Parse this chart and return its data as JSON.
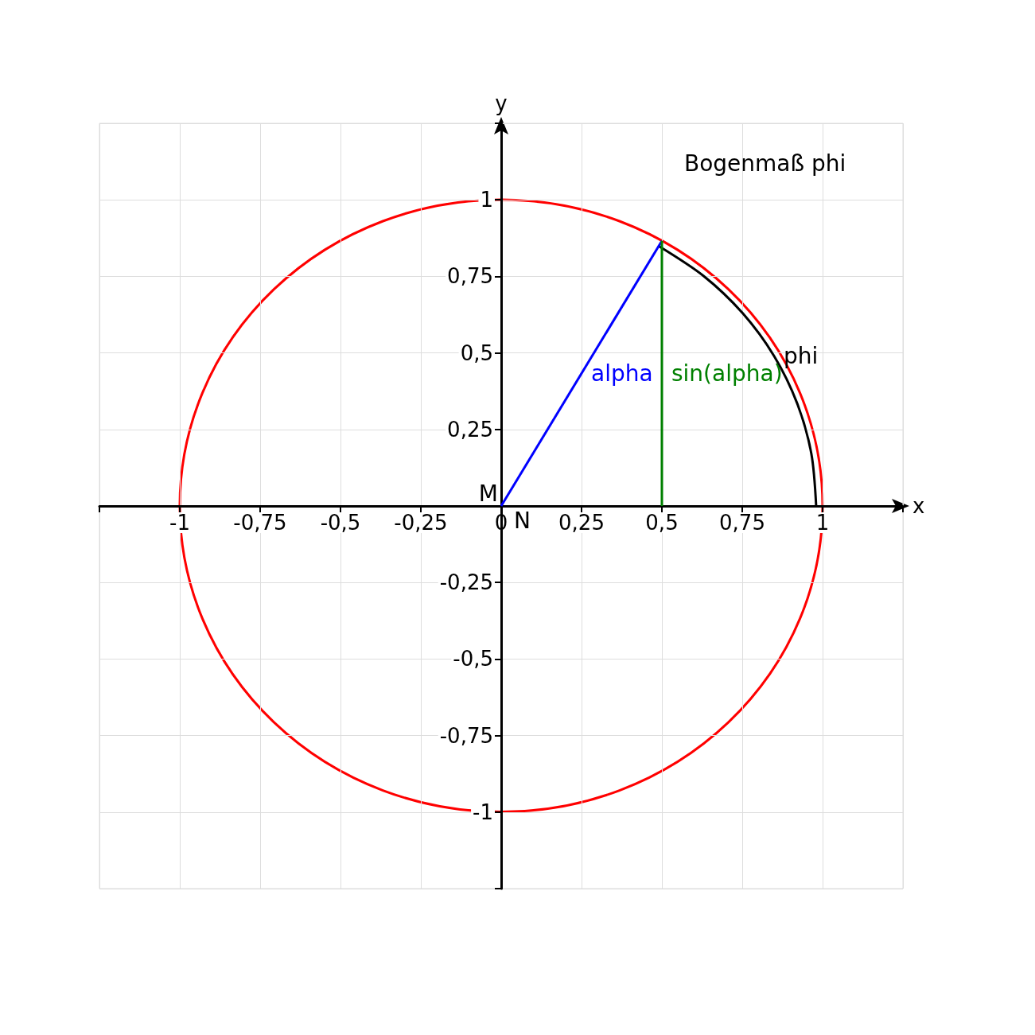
{
  "chart_data": {
    "type": "line",
    "title": "Bogenmaß phi",
    "xlabel": "x",
    "ylabel": "y",
    "xlim": [
      -1.25,
      1.25
    ],
    "ylim": [
      -1.25,
      1.25
    ],
    "xticks": [
      {
        "value": -1,
        "label": "-1"
      },
      {
        "value": -0.75,
        "label": "-0,75"
      },
      {
        "value": -0.5,
        "label": "-0,5"
      },
      {
        "value": -0.25,
        "label": "-0,25"
      },
      {
        "value": 0,
        "label": "0"
      },
      {
        "value": 0.25,
        "label": "0,25"
      },
      {
        "value": 0.5,
        "label": "0,5"
      },
      {
        "value": 0.75,
        "label": "0,75"
      },
      {
        "value": 1,
        "label": "1"
      }
    ],
    "yticks": [
      {
        "value": -1,
        "label": "-1"
      },
      {
        "value": -0.75,
        "label": "-0,75"
      },
      {
        "value": -0.5,
        "label": "-0,5"
      },
      {
        "value": -0.25,
        "label": "-0,25"
      },
      {
        "value": 0,
        "label": null
      },
      {
        "value": 0.25,
        "label": "0,25"
      },
      {
        "value": 0.5,
        "label": "0,5"
      },
      {
        "value": 0.75,
        "label": "0,75"
      },
      {
        "value": 1,
        "label": "1"
      }
    ],
    "grid": true,
    "legend": false,
    "marker": "none",
    "line_style": "solid",
    "series": [
      {
        "name": "phi",
        "color": "#000000",
        "x": [
          0.98,
          0.965,
          0.921,
          0.849,
          0.751,
          0.63,
          0.49
        ],
        "values": [
          0,
          0.171,
          0.335,
          0.49,
          0.63,
          0.751,
          0.849
        ]
      },
      {
        "name": "alpha",
        "color": "#0000ff",
        "x": [
          0,
          0.5
        ],
        "values": [
          0,
          0.866
        ]
      },
      {
        "name": "sin(alpha)",
        "color": "#008000",
        "x": [
          0.5,
          0.5
        ],
        "values": [
          0,
          0.866
        ]
      }
    ],
    "annotations": [
      {
        "text": "M",
        "x": 0,
        "y": 0
      },
      {
        "text": "N",
        "x": 0,
        "y": 0
      }
    ]
  }
}
